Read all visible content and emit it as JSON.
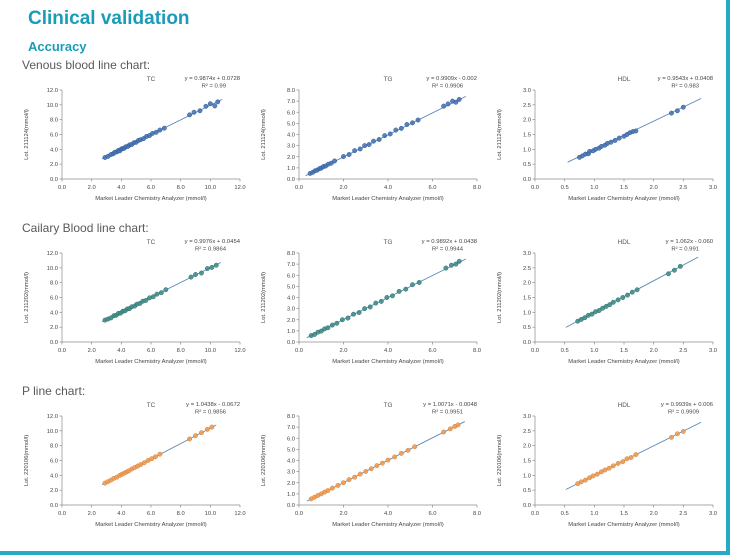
{
  "page": {
    "title": "Clinical validation",
    "subtitle": "Accuracy",
    "accent_color": "#1a9cb8",
    "border_color": "#2aa9c2"
  },
  "sections": [
    {
      "label": "Venous blood line chart:"
    },
    {
      "label": "Cailary Blood line chart:"
    },
    {
      "label": "P line chart:"
    }
  ],
  "chart_data": [
    {
      "type": "scatter",
      "section": "Venous blood",
      "title": "TC",
      "equation": "y = 0.9874x + 0.0728",
      "r2": "R² = 0.99",
      "xlabel": "Market Leader Chemistry Analyzer (mmol/l)",
      "ylabel": "Lot. 211124(mmol/l)",
      "xlim": [
        0,
        12
      ],
      "ylim": [
        0,
        12
      ],
      "xtick_step": 2,
      "ytick_step": 2,
      "grid": false,
      "legend": "none",
      "point_color": "#4573b3",
      "point_edge": "#2e5a99",
      "line_color": "#5b87b8",
      "trend": {
        "slope": 0.9874,
        "intercept": 0.0728
      },
      "points": [
        [
          2.9,
          2.9
        ],
        [
          3.1,
          3.05
        ],
        [
          3.3,
          3.3
        ],
        [
          3.45,
          3.4
        ],
        [
          3.55,
          3.6
        ],
        [
          3.7,
          3.65
        ],
        [
          3.8,
          3.85
        ],
        [
          3.9,
          3.8
        ],
        [
          4.0,
          4.05
        ],
        [
          4.1,
          4.1
        ],
        [
          4.2,
          4.15
        ],
        [
          4.3,
          4.35
        ],
        [
          4.45,
          4.4
        ],
        [
          4.55,
          4.6
        ],
        [
          4.7,
          4.65
        ],
        [
          4.85,
          4.9
        ],
        [
          5.0,
          4.95
        ],
        [
          5.15,
          5.2
        ],
        [
          5.3,
          5.3
        ],
        [
          5.5,
          5.45
        ],
        [
          5.7,
          5.75
        ],
        [
          5.9,
          5.85
        ],
        [
          6.1,
          6.15
        ],
        [
          6.35,
          6.3
        ],
        [
          6.6,
          6.6
        ],
        [
          6.9,
          6.85
        ],
        [
          8.6,
          8.65
        ],
        [
          8.9,
          9.0
        ],
        [
          9.3,
          9.2
        ],
        [
          9.7,
          9.8
        ],
        [
          10.0,
          10.15
        ],
        [
          10.3,
          9.85
        ],
        [
          10.5,
          10.4
        ]
      ]
    },
    {
      "type": "scatter",
      "section": "Venous blood",
      "title": "TG",
      "equation": "y = 0.9909x - 0.002",
      "r2": "R² = 0.9906",
      "xlabel": "Market Leader Chemistry Analyzer (mmol/l)",
      "ylabel": "Lot. 211124(mmol/l)",
      "xlim": [
        0,
        8
      ],
      "ylim": [
        0,
        8
      ],
      "xtick_step": 2,
      "ytick_step": 1,
      "grid": false,
      "legend": "none",
      "point_color": "#4573b3",
      "point_edge": "#2e5a99",
      "line_color": "#5b87b8",
      "trend": {
        "slope": 0.9909,
        "intercept": -0.002
      },
      "points": [
        [
          0.5,
          0.5
        ],
        [
          0.62,
          0.6
        ],
        [
          0.72,
          0.74
        ],
        [
          0.82,
          0.8
        ],
        [
          0.92,
          0.93
        ],
        [
          1.0,
          0.98
        ],
        [
          1.1,
          1.12
        ],
        [
          1.2,
          1.17
        ],
        [
          1.32,
          1.33
        ],
        [
          1.45,
          1.42
        ],
        [
          1.6,
          1.62
        ],
        [
          2.0,
          2.02
        ],
        [
          2.25,
          2.2
        ],
        [
          2.5,
          2.55
        ],
        [
          2.75,
          2.7
        ],
        [
          2.95,
          3.0
        ],
        [
          3.15,
          3.1
        ],
        [
          3.35,
          3.4
        ],
        [
          3.6,
          3.55
        ],
        [
          3.85,
          3.9
        ],
        [
          4.1,
          4.05
        ],
        [
          4.35,
          4.4
        ],
        [
          4.6,
          4.55
        ],
        [
          4.85,
          4.9
        ],
        [
          5.1,
          5.05
        ],
        [
          5.35,
          5.3
        ],
        [
          6.5,
          6.55
        ],
        [
          6.7,
          6.75
        ],
        [
          6.9,
          7.0
        ],
        [
          7.05,
          6.9
        ],
        [
          7.2,
          7.15
        ]
      ]
    },
    {
      "type": "scatter",
      "section": "Venous blood",
      "title": "HDL",
      "equation": "y = 0.9543x + 0.0408",
      "r2": "R² = 0.983",
      "xlabel": "Market Leader Chemistry Analyzer (mmol/l)",
      "ylabel": "Lot. 211124(mmol/l)",
      "xlim": [
        0,
        3
      ],
      "ylim": [
        0,
        3
      ],
      "xtick_step": 0.5,
      "ytick_step": 0.5,
      "grid": false,
      "legend": "none",
      "point_color": "#4573b3",
      "point_edge": "#2e5a99",
      "line_color": "#5b87b8",
      "trend": {
        "slope": 0.9543,
        "intercept": 0.0408
      },
      "points": [
        [
          0.75,
          0.73
        ],
        [
          0.8,
          0.78
        ],
        [
          0.85,
          0.84
        ],
        [
          0.9,
          0.85
        ],
        [
          0.92,
          0.93
        ],
        [
          0.98,
          0.95
        ],
        [
          1.02,
          1.0
        ],
        [
          1.08,
          1.04
        ],
        [
          1.12,
          1.1
        ],
        [
          1.18,
          1.14
        ],
        [
          1.22,
          1.2
        ],
        [
          1.28,
          1.24
        ],
        [
          1.35,
          1.3
        ],
        [
          1.42,
          1.38
        ],
        [
          1.5,
          1.44
        ],
        [
          1.55,
          1.5
        ],
        [
          1.6,
          1.56
        ],
        [
          1.65,
          1.6
        ],
        [
          1.7,
          1.62
        ],
        [
          2.3,
          2.22
        ],
        [
          2.4,
          2.3
        ],
        [
          2.5,
          2.42
        ]
      ]
    },
    {
      "type": "scatter",
      "section": "Cailary Blood",
      "title": "TC",
      "equation": "y = 0.9976x + 0.0454",
      "r2": "R² = 0.9864",
      "xlabel": "Market Leader Chemistry Analyzer (mmol/l)",
      "ylabel": "Lot. 211202(mmol/l)",
      "xlim": [
        0,
        12
      ],
      "ylim": [
        0,
        12
      ],
      "xtick_step": 2,
      "ytick_step": 2,
      "grid": false,
      "legend": "none",
      "point_color": "#3d8c88",
      "point_edge": "#2a6f6c",
      "line_color": "#5b87b8",
      "trend": {
        "slope": 0.9976,
        "intercept": 0.0454
      },
      "points": [
        [
          2.9,
          2.95
        ],
        [
          3.1,
          3.1
        ],
        [
          3.3,
          3.25
        ],
        [
          3.5,
          3.55
        ],
        [
          3.65,
          3.6
        ],
        [
          3.8,
          3.85
        ],
        [
          3.95,
          3.9
        ],
        [
          4.1,
          4.15
        ],
        [
          4.25,
          4.2
        ],
        [
          4.4,
          4.45
        ],
        [
          4.55,
          4.5
        ],
        [
          4.7,
          4.75
        ],
        [
          4.9,
          4.85
        ],
        [
          5.05,
          5.1
        ],
        [
          5.25,
          5.2
        ],
        [
          5.45,
          5.5
        ],
        [
          5.65,
          5.6
        ],
        [
          5.9,
          5.95
        ],
        [
          6.15,
          6.1
        ],
        [
          6.4,
          6.45
        ],
        [
          6.7,
          6.65
        ],
        [
          7.0,
          7.05
        ],
        [
          8.7,
          8.75
        ],
        [
          9.0,
          9.1
        ],
        [
          9.4,
          9.3
        ],
        [
          9.8,
          9.9
        ],
        [
          10.1,
          10.05
        ],
        [
          10.4,
          10.35
        ]
      ]
    },
    {
      "type": "scatter",
      "section": "Cailary Blood",
      "title": "TG",
      "equation": "y = 0.9892x + 0.0438",
      "r2": "R² = 0.9944",
      "xlabel": "Market Leader Chemistry Analyzer (mmol/l)",
      "ylabel": "Lot. 211202(mmol/l)",
      "xlim": [
        0,
        8
      ],
      "ylim": [
        0,
        8
      ],
      "xtick_step": 2,
      "ytick_step": 1,
      "grid": false,
      "legend": "none",
      "point_color": "#3d8c88",
      "point_edge": "#2a6f6c",
      "line_color": "#5b87b8",
      "trend": {
        "slope": 0.9892,
        "intercept": 0.0438
      },
      "points": [
        [
          0.55,
          0.58
        ],
        [
          0.7,
          0.68
        ],
        [
          0.85,
          0.88
        ],
        [
          1.0,
          0.98
        ],
        [
          1.15,
          1.18
        ],
        [
          1.3,
          1.28
        ],
        [
          1.5,
          1.52
        ],
        [
          1.7,
          1.68
        ],
        [
          1.95,
          2.0
        ],
        [
          2.2,
          2.15
        ],
        [
          2.45,
          2.5
        ],
        [
          2.7,
          2.65
        ],
        [
          2.95,
          3.0
        ],
        [
          3.2,
          3.15
        ],
        [
          3.45,
          3.5
        ],
        [
          3.7,
          3.65
        ],
        [
          3.95,
          4.0
        ],
        [
          4.2,
          4.15
        ],
        [
          4.5,
          4.55
        ],
        [
          4.8,
          4.75
        ],
        [
          5.1,
          5.15
        ],
        [
          5.4,
          5.35
        ],
        [
          6.6,
          6.65
        ],
        [
          6.85,
          6.9
        ],
        [
          7.05,
          7.0
        ],
        [
          7.2,
          7.25
        ]
      ]
    },
    {
      "type": "scatter",
      "section": "Cailary Blood",
      "title": "HDL",
      "equation": "y = 1.062x - 0.060",
      "r2": "R² = 0.991",
      "xlabel": "Market Leader Chemistry Analyzer (mmol/l)",
      "ylabel": "Lot. 211202(mmol/l)",
      "xlim": [
        0,
        3
      ],
      "ylim": [
        0,
        3
      ],
      "xtick_step": 0.5,
      "ytick_step": 0.5,
      "grid": false,
      "legend": "none",
      "point_color": "#3d8c88",
      "point_edge": "#2a6f6c",
      "line_color": "#5b87b8",
      "trend": {
        "slope": 1.062,
        "intercept": -0.06
      },
      "points": [
        [
          0.72,
          0.7
        ],
        [
          0.78,
          0.76
        ],
        [
          0.84,
          0.82
        ],
        [
          0.9,
          0.9
        ],
        [
          0.96,
          0.94
        ],
        [
          1.02,
          1.02
        ],
        [
          1.08,
          1.06
        ],
        [
          1.14,
          1.14
        ],
        [
          1.2,
          1.2
        ],
        [
          1.26,
          1.26
        ],
        [
          1.32,
          1.34
        ],
        [
          1.4,
          1.42
        ],
        [
          1.48,
          1.5
        ],
        [
          1.56,
          1.58
        ],
        [
          1.64,
          1.68
        ],
        [
          1.72,
          1.76
        ],
        [
          2.25,
          2.3
        ],
        [
          2.35,
          2.42
        ],
        [
          2.45,
          2.55
        ]
      ]
    },
    {
      "type": "scatter",
      "section": "P line",
      "title": "TC",
      "equation": "y = 1.0438x - 0.0672",
      "r2": "R² = 0.9856",
      "xlabel": "Market Leader Chemistry Analyzer (mmol/l)",
      "ylabel": "Lot. 220106(mmol/l)",
      "xlim": [
        0,
        12
      ],
      "ylim": [
        0,
        12
      ],
      "xtick_step": 2,
      "ytick_step": 2,
      "grid": false,
      "legend": "none",
      "point_color": "#ef9b51",
      "point_edge": "#d97f2e",
      "line_color": "#5b87b8",
      "trend": {
        "slope": 1.0438,
        "intercept": -0.0672
      },
      "points": [
        [
          2.9,
          2.95
        ],
        [
          3.1,
          3.15
        ],
        [
          3.3,
          3.35
        ],
        [
          3.5,
          3.6
        ],
        [
          3.7,
          3.75
        ],
        [
          3.9,
          4.0
        ],
        [
          4.05,
          4.15
        ],
        [
          4.2,
          4.3
        ],
        [
          4.35,
          4.45
        ],
        [
          4.5,
          4.6
        ],
        [
          4.7,
          4.85
        ],
        [
          4.9,
          5.05
        ],
        [
          5.1,
          5.25
        ],
        [
          5.3,
          5.45
        ],
        [
          5.55,
          5.7
        ],
        [
          5.8,
          6.0
        ],
        [
          6.05,
          6.25
        ],
        [
          6.3,
          6.5
        ],
        [
          6.6,
          6.85
        ],
        [
          8.6,
          8.9
        ],
        [
          9.0,
          9.35
        ],
        [
          9.4,
          9.75
        ],
        [
          9.8,
          10.2
        ],
        [
          10.1,
          10.5
        ]
      ]
    },
    {
      "type": "scatter",
      "section": "P line",
      "title": "TG",
      "equation": "y = 1.0071x - 0.0048",
      "r2": "R² = 0.9951",
      "xlabel": "Market Leader Chemistry Analyzer (mmol/l)",
      "ylabel": "Lot. 220106(mmol/l)",
      "xlim": [
        0,
        8
      ],
      "ylim": [
        0,
        8
      ],
      "xtick_step": 2,
      "ytick_step": 1,
      "grid": false,
      "legend": "none",
      "point_color": "#ef9b51",
      "point_edge": "#d97f2e",
      "line_color": "#5b87b8",
      "trend": {
        "slope": 1.0071,
        "intercept": -0.0048
      },
      "points": [
        [
          0.55,
          0.55
        ],
        [
          0.7,
          0.7
        ],
        [
          0.85,
          0.86
        ],
        [
          1.0,
          1.0
        ],
        [
          1.15,
          1.16
        ],
        [
          1.3,
          1.3
        ],
        [
          1.5,
          1.52
        ],
        [
          1.75,
          1.76
        ],
        [
          2.0,
          2.0
        ],
        [
          2.25,
          2.28
        ],
        [
          2.5,
          2.5
        ],
        [
          2.75,
          2.78
        ],
        [
          3.0,
          3.02
        ],
        [
          3.25,
          3.26
        ],
        [
          3.5,
          3.54
        ],
        [
          3.75,
          3.76
        ],
        [
          4.0,
          4.04
        ],
        [
          4.3,
          4.32
        ],
        [
          4.6,
          4.64
        ],
        [
          4.9,
          4.92
        ],
        [
          5.2,
          5.24
        ],
        [
          6.5,
          6.56
        ],
        [
          6.8,
          6.84
        ],
        [
          7.0,
          7.06
        ],
        [
          7.15,
          7.2
        ]
      ]
    },
    {
      "type": "scatter",
      "section": "P line",
      "title": "HDL",
      "equation": "y = 0.9939x + 0.006",
      "r2": "R² = 0.9909",
      "xlabel": "Market Leader Chemistry Analyzer (mmol/l)",
      "ylabel": "Lot. 220106(mmol/l)",
      "xlim": [
        0,
        3
      ],
      "ylim": [
        0,
        3
      ],
      "xtick_step": 0.5,
      "ytick_step": 0.5,
      "grid": false,
      "legend": "none",
      "point_color": "#ef9b51",
      "point_edge": "#d97f2e",
      "line_color": "#5b87b8",
      "trend": {
        "slope": 0.9939,
        "intercept": 0.006
      },
      "points": [
        [
          0.72,
          0.72
        ],
        [
          0.78,
          0.78
        ],
        [
          0.85,
          0.84
        ],
        [
          0.92,
          0.92
        ],
        [
          0.98,
          0.98
        ],
        [
          1.05,
          1.04
        ],
        [
          1.12,
          1.12
        ],
        [
          1.18,
          1.18
        ],
        [
          1.25,
          1.24
        ],
        [
          1.32,
          1.32
        ],
        [
          1.4,
          1.4
        ],
        [
          1.48,
          1.46
        ],
        [
          1.55,
          1.56
        ],
        [
          1.62,
          1.6
        ],
        [
          1.7,
          1.7
        ],
        [
          2.3,
          2.28
        ],
        [
          2.4,
          2.4
        ],
        [
          2.5,
          2.48
        ]
      ]
    }
  ]
}
